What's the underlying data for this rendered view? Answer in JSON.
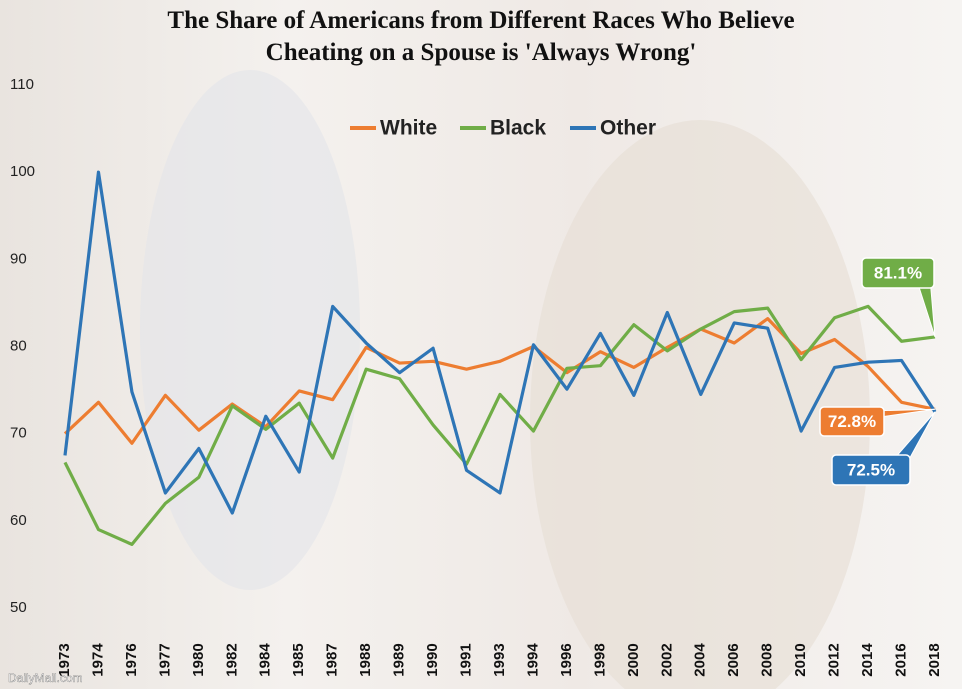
{
  "chart_data": {
    "type": "line",
    "title": "The Share of Americans from Different Races Who Believe Cheating on a Spouse is 'Always Wrong'",
    "categories": [
      "1973",
      "1974",
      "1976",
      "1977",
      "1980",
      "1982",
      "1984",
      "1985",
      "1987",
      "1988",
      "1989",
      "1990",
      "1991",
      "1993",
      "1994",
      "1996",
      "1998",
      "2000",
      "2002",
      "2004",
      "2006",
      "2008",
      "2010",
      "2012",
      "2014",
      "2016",
      "2018"
    ],
    "series": [
      {
        "name": "White",
        "color": "#ed7d31",
        "values": [
          70,
          73.6,
          68.9,
          74.4,
          70.4,
          73.4,
          70.8,
          74.9,
          73.9,
          79.9,
          78.1,
          78.3,
          77.4,
          78.3,
          80,
          77,
          79.4,
          77.6,
          79.9,
          82,
          80.4,
          83.2,
          79.2,
          80.8,
          77.7,
          73.6,
          72.8
        ],
        "value_labels": [
          null,
          null,
          null,
          null,
          null,
          null,
          null,
          null,
          null,
          null,
          null,
          null,
          null,
          null,
          null,
          null,
          null,
          null,
          null,
          null,
          null,
          null,
          null,
          null,
          null,
          null,
          "72.8%"
        ]
      },
      {
        "name": "Black",
        "color": "#70ad47",
        "values": [
          66.7,
          59,
          57.3,
          62,
          65,
          73.2,
          70.5,
          73.5,
          67.2,
          77.4,
          76.3,
          71,
          66.5,
          74.5,
          70.3,
          77.5,
          77.8,
          82.5,
          79.5,
          82,
          84,
          84.4,
          78.5,
          83.3,
          84.6,
          80.6,
          81.1
        ],
        "value_labels": [
          null,
          null,
          null,
          null,
          null,
          null,
          null,
          null,
          null,
          null,
          null,
          null,
          null,
          null,
          null,
          null,
          null,
          null,
          null,
          null,
          null,
          null,
          null,
          null,
          null,
          null,
          "81.1%"
        ]
      },
      {
        "name": "Other",
        "color": "#2e75b6",
        "values": [
          67.5,
          100,
          74.8,
          63.2,
          68.3,
          60.9,
          72,
          65.6,
          84.6,
          80.4,
          77,
          79.8,
          65.8,
          63.2,
          80.2,
          75.1,
          81.5,
          74.4,
          83.9,
          74.5,
          82.7,
          82.1,
          70.3,
          77.6,
          78.2,
          78.4,
          72.5
        ],
        "value_labels": [
          null,
          null,
          null,
          null,
          null,
          null,
          null,
          null,
          null,
          null,
          null,
          null,
          null,
          null,
          null,
          null,
          null,
          null,
          null,
          null,
          null,
          null,
          null,
          null,
          null,
          null,
          "72.5%"
        ]
      }
    ],
    "ylim": [
      50,
      110
    ],
    "yticks": [
      50,
      60,
      70,
      80,
      90,
      100,
      110
    ],
    "grid": false,
    "legend": "top",
    "source": "DailyMail.com"
  }
}
